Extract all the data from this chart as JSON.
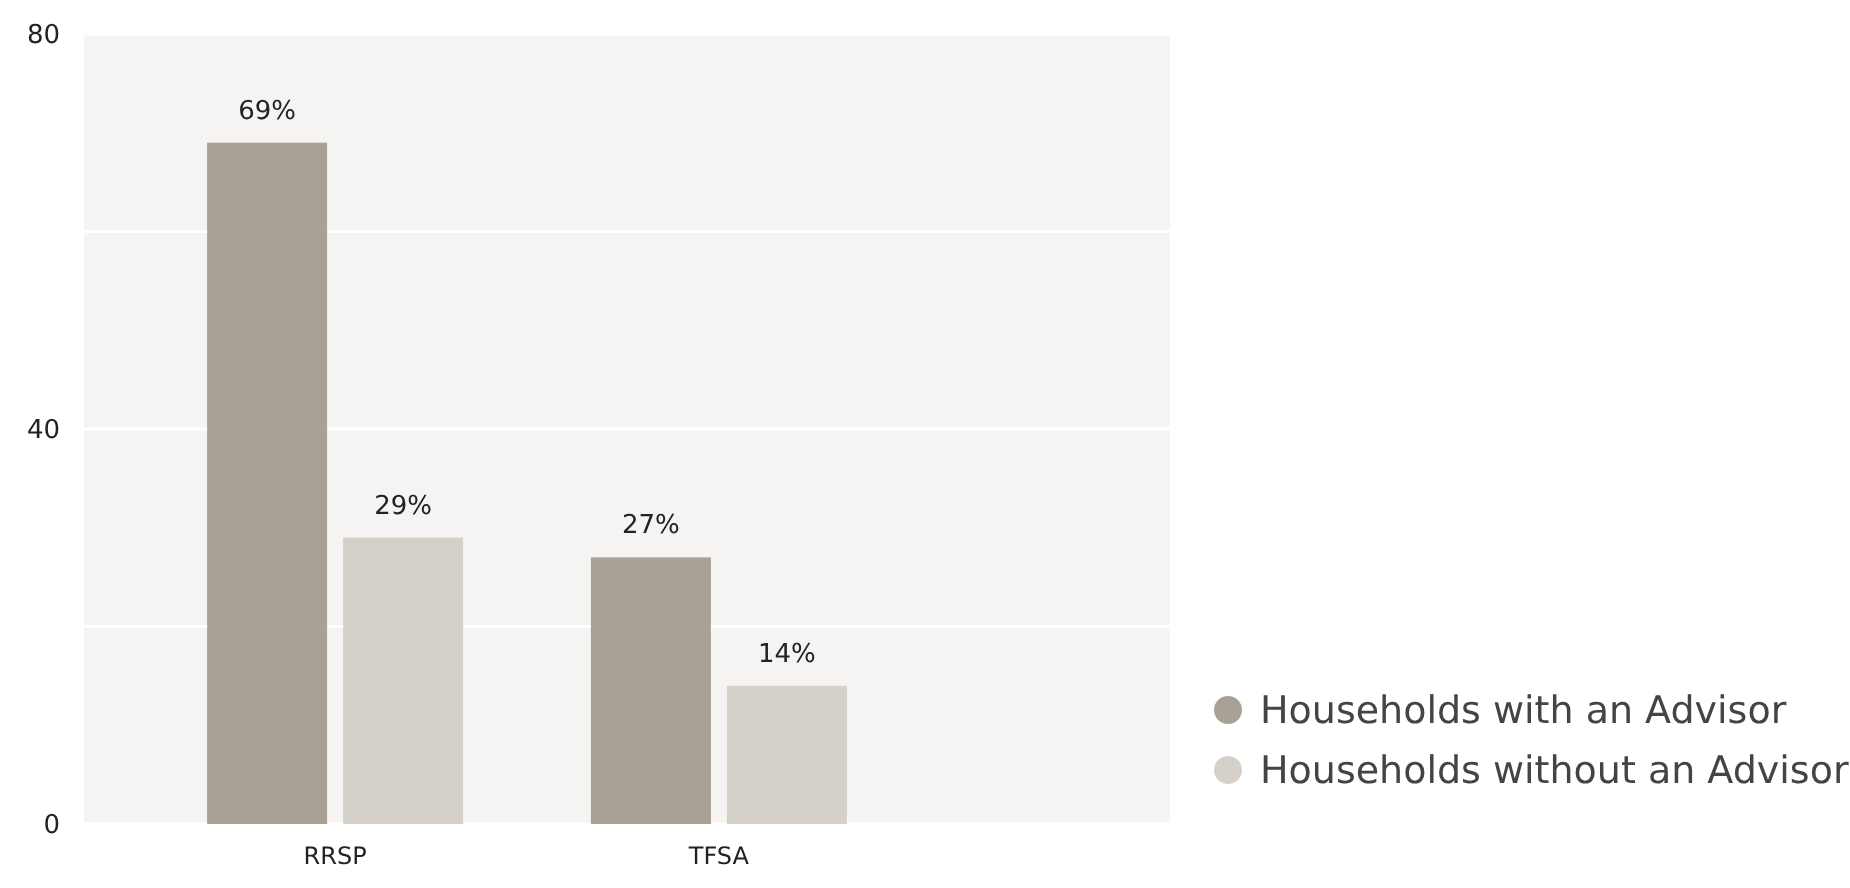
{
  "chart_data": {
    "type": "bar",
    "categories": [
      "RRSP",
      "TFSA"
    ],
    "series": [
      {
        "name": "Households with an Advisor",
        "color": "#aaa196",
        "values": [
          69,
          27
        ],
        "value_labels": [
          "69%",
          "27%"
        ]
      },
      {
        "name": "Households without an Advisor",
        "color": "#d5d0ca",
        "values": [
          29,
          14
        ],
        "value_labels": [
          "29%",
          "14%"
        ]
      }
    ],
    "ylim": [
      0,
      80
    ],
    "yticks": [
      0,
      {
        "value": 20,
        "label": null
      },
      40,
      {
        "value": 60,
        "label": null
      },
      80
    ],
    "grid": "y",
    "legend": "bottom right"
  }
}
